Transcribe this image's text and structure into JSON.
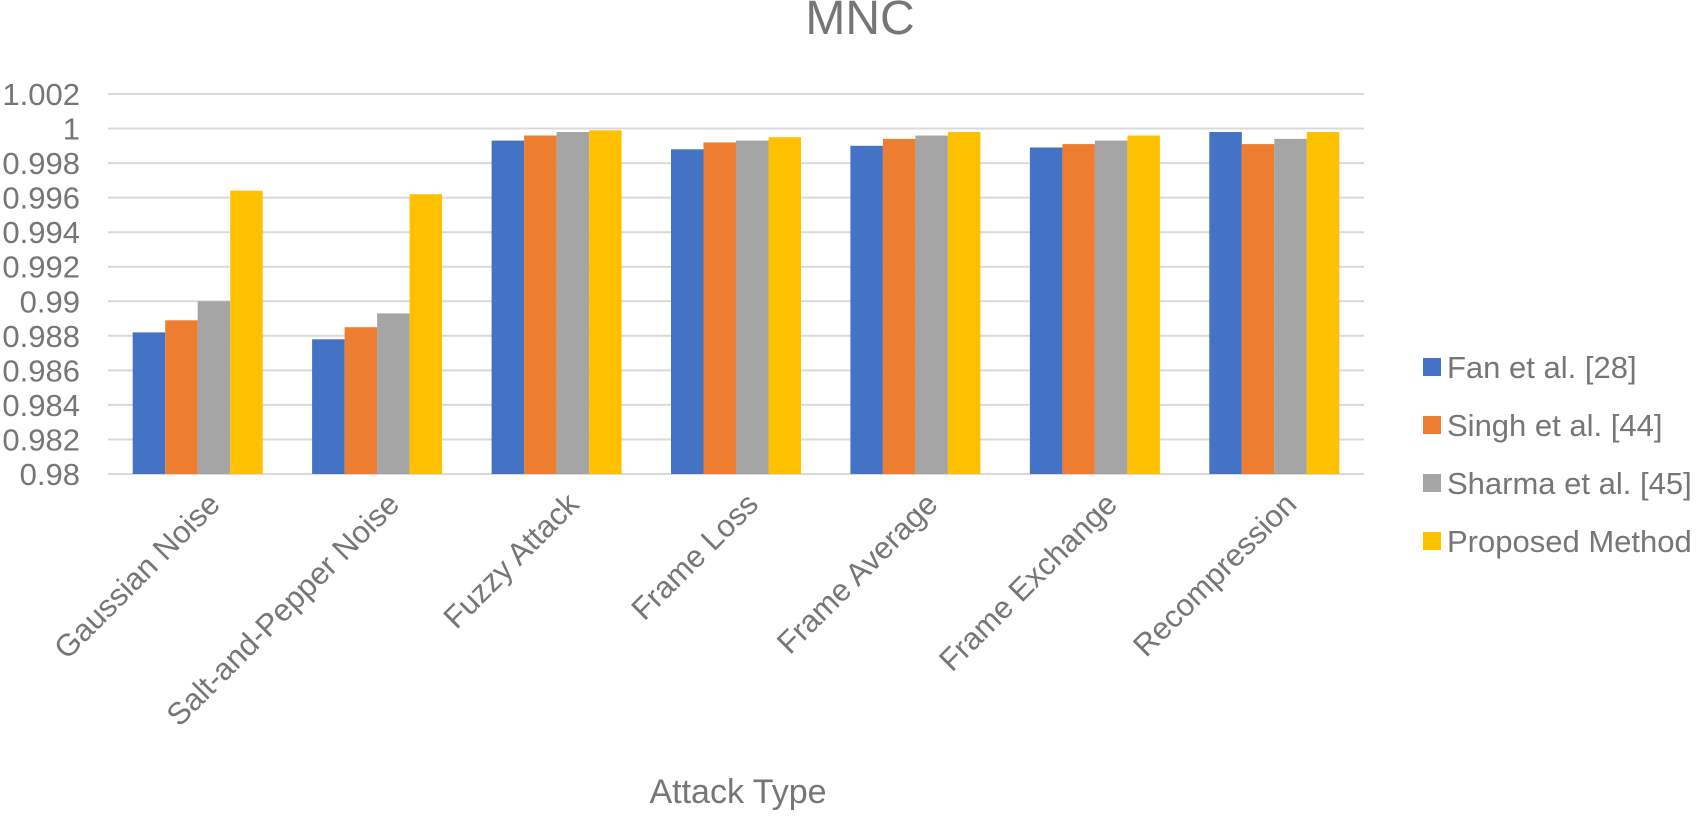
{
  "chart_data": {
    "type": "bar",
    "title": "MNC",
    "xlabel": "Attack Type",
    "ylabel": "",
    "ylim": [
      0.98,
      1.002
    ],
    "ytick_step": 0.002,
    "ytick_labels": [
      "0.98",
      "0.982",
      "0.984",
      "0.986",
      "0.988",
      "0.99",
      "0.992",
      "0.994",
      "0.996",
      "0.998",
      "1",
      "1.002"
    ],
    "grid": true,
    "legend_position": "right",
    "categories": [
      "Gaussian Noise",
      "Salt-and-Pepper Noise",
      "Fuzzy Attack",
      "Frame Loss",
      "Frame Average",
      "Frame Exchange",
      "Recompression"
    ],
    "series": [
      {
        "name": "Fan et al. [28]",
        "color": "#4472C4",
        "values": [
          0.9882,
          0.9878,
          0.9993,
          0.9988,
          0.999,
          0.9989,
          0.9998
        ]
      },
      {
        "name": "Singh et al. [44]",
        "color": "#ED7D31",
        "values": [
          0.9889,
          0.9885,
          0.9996,
          0.9992,
          0.9994,
          0.9991,
          0.9991
        ]
      },
      {
        "name": "Sharma et al. [45]",
        "color": "#A5A5A5",
        "values": [
          0.99,
          0.9893,
          0.9998,
          0.9993,
          0.9996,
          0.9993,
          0.9994
        ]
      },
      {
        "name": "Proposed Method",
        "color": "#FFC000",
        "values": [
          0.9964,
          0.9962,
          0.9999,
          0.9995,
          0.9998,
          0.9996,
          0.9998
        ]
      }
    ]
  }
}
